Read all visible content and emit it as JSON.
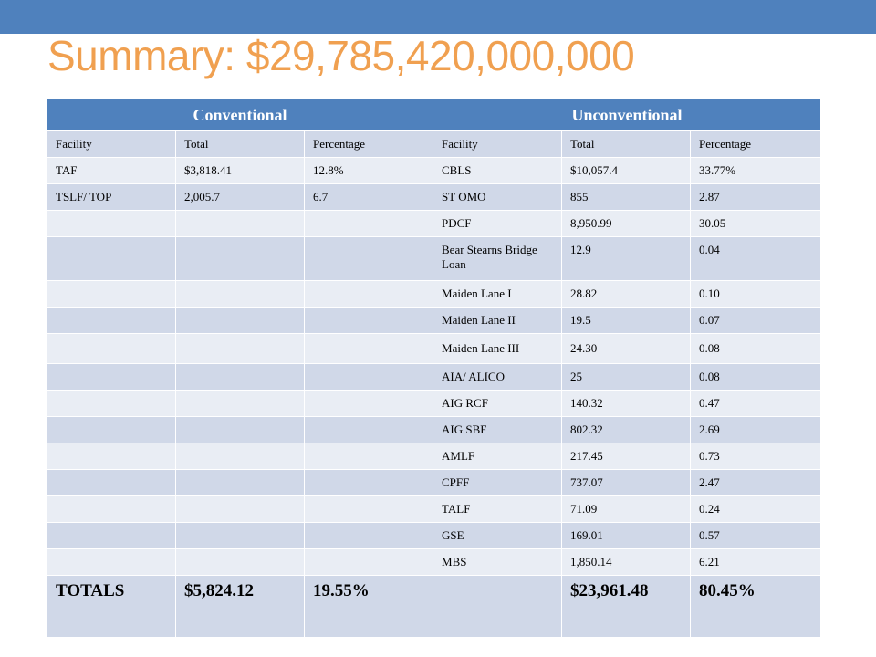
{
  "title": "Summary: $29,785,420,000,000",
  "groups": {
    "conventional": "Conventional",
    "unconventional": "Unconventional"
  },
  "headers": [
    "Facility",
    "Total",
    "Percentage",
    "Facility",
    "Total",
    "Percentage"
  ],
  "rows": [
    [
      "TAF",
      "$3,818.41",
      "12.8%",
      "CBLS",
      "$10,057.4",
      "33.77%"
    ],
    [
      "TSLF/ TOP",
      "2,005.7",
      "6.7",
      "ST OMO",
      "855",
      "2.87"
    ],
    [
      "",
      "",
      "",
      "PDCF",
      "8,950.99",
      "30.05"
    ],
    [
      "",
      "",
      "",
      "Bear Stearns Bridge  Loan",
      "12.9",
      "0.04"
    ],
    [
      "",
      "",
      "",
      "Maiden Lane I",
      "28.82",
      "0.10"
    ],
    [
      "",
      "",
      "",
      "Maiden Lane II",
      "19.5",
      "0.07"
    ],
    [
      "",
      "",
      "",
      "Maiden Lane III",
      "24.30",
      "0.08"
    ],
    [
      "",
      "",
      "",
      "AIA/ ALICO",
      "25",
      "0.08"
    ],
    [
      "",
      "",
      "",
      "AIG RCF",
      "140.32",
      "0.47"
    ],
    [
      "",
      "",
      "",
      "AIG SBF",
      "802.32",
      "2.69"
    ],
    [
      "",
      "",
      "",
      "AMLF",
      "217.45",
      "0.73"
    ],
    [
      "",
      "",
      "",
      "CPFF",
      "737.07",
      "2.47"
    ],
    [
      "",
      "",
      "",
      "TALF",
      "71.09",
      "0.24"
    ],
    [
      "",
      "",
      "",
      "GSE",
      "169.01",
      "0.57"
    ],
    [
      "",
      "",
      "",
      "MBS",
      "1,850.14",
      "6.21"
    ]
  ],
  "totals": [
    "TOTALS",
    "$5,824.12",
    "19.55%",
    "",
    "$23,961.48",
    "80.45%"
  ],
  "colors": {
    "accent_bar": "#4f81bd",
    "title": "#f0a050",
    "row_dark": "#d0d8e8",
    "row_light": "#e9edf4"
  }
}
